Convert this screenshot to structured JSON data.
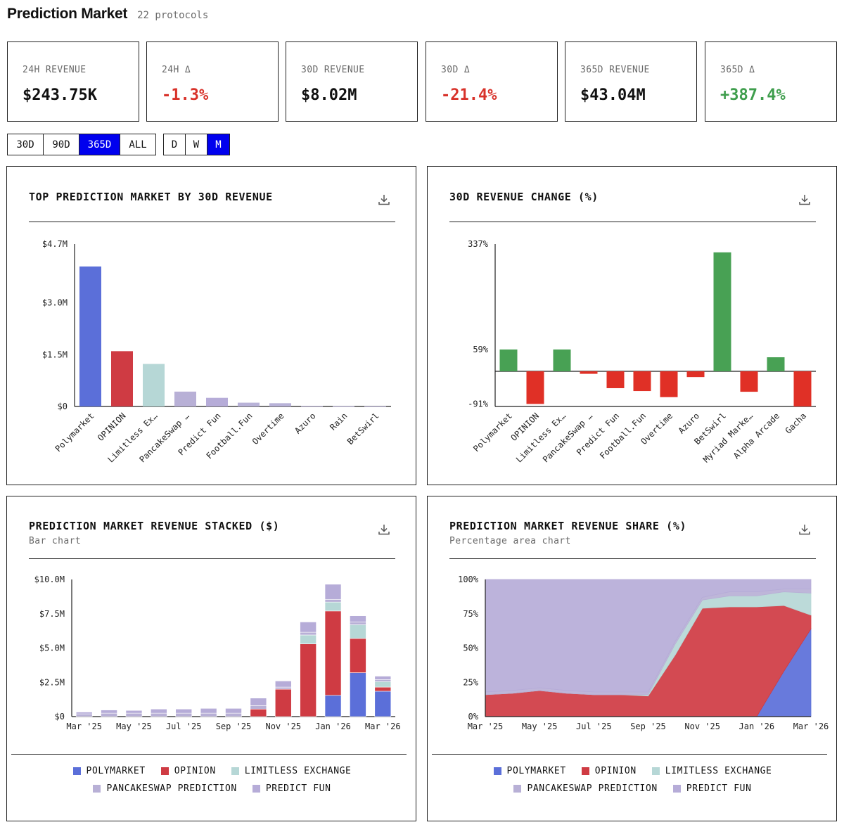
{
  "header": {
    "title": "Prediction Market",
    "subtitle": "22 protocols"
  },
  "stats": [
    {
      "label": "24H REVENUE",
      "value": "$243.75K",
      "color": "#111111"
    },
    {
      "label": "24H Δ",
      "value": "-1.3%",
      "color": "#d8322a"
    },
    {
      "label": "30D REVENUE",
      "value": "$8.02M",
      "color": "#111111"
    },
    {
      "label": "30D Δ",
      "value": "-21.4%",
      "color": "#d8322a"
    },
    {
      "label": "365D REVENUE",
      "value": "$43.04M",
      "color": "#111111"
    },
    {
      "label": "365D Δ",
      "value": "+387.4%",
      "color": "#3f9e4d"
    }
  ],
  "range_buttons": {
    "items": [
      "30D",
      "90D",
      "365D",
      "ALL"
    ],
    "active": "365D"
  },
  "interval_buttons": {
    "items": [
      "D",
      "W",
      "M"
    ],
    "active": "M"
  },
  "colors": {
    "polymarket": "#5b6fd9",
    "opinion": "#cf3b43",
    "limitless": "#b6d7d6",
    "pancakeswap": "#b8b0d6",
    "predictfun": "#b6acd8",
    "other": "#b8b2d8",
    "positive": "#48a154",
    "negative": "#e03026"
  },
  "panels": {
    "top": {
      "title": "TOP PREDICTION MARKET BY 30D REVENUE"
    },
    "change": {
      "title": "30D REVENUE CHANGE (%)"
    },
    "stacked": {
      "title": "PREDICTION MARKET REVENUE STACKED ($)",
      "subtitle": "Bar chart"
    },
    "share": {
      "title": "PREDICTION MARKET REVENUE SHARE (%)",
      "subtitle": "Percentage area chart"
    }
  },
  "legend": [
    {
      "label": "POLYMARKET",
      "color": "#5b6fd9"
    },
    {
      "label": "OPINION",
      "color": "#cf3b43"
    },
    {
      "label": "LIMITLESS EXCHANGE",
      "color": "#b6d7d6"
    },
    {
      "label": "PANCAKESWAP PREDICTION",
      "color": "#b8b0d6"
    },
    {
      "label": "PREDICT FUN",
      "color": "#b6acd8"
    }
  ],
  "chart_data": [
    {
      "id": "top",
      "type": "bar",
      "title": "TOP PREDICTION MARKET BY 30D REVENUE",
      "categories": [
        "Polymarket",
        "OPINION",
        "Limitless Ex…",
        "PancakeSwap …",
        "Predict Fun",
        "Football.Fun",
        "Overtime",
        "Azuro",
        "Rain",
        "BetSwirl"
      ],
      "values": [
        4050000,
        1600000,
        1230000,
        430000,
        250000,
        110000,
        95000,
        15000,
        8000,
        5000
      ],
      "bar_colors": [
        "#5b6fd9",
        "#cf3b43",
        "#b6d7d6",
        "#b8b0d6",
        "#b6acd8",
        "#b8b2d8",
        "#b8b2d8",
        "#b8b2d8",
        "#b8b2d8",
        "#b8b2d8"
      ],
      "yticks": [
        0,
        1500000,
        3000000,
        4700000
      ],
      "ytick_labels": [
        "$0",
        "$1.5M",
        "$3.0M",
        "$4.7M"
      ],
      "ylim": [
        0,
        4700000
      ]
    },
    {
      "id": "change",
      "type": "bar",
      "title": "30D REVENUE CHANGE (%)",
      "categories": [
        "Polymarket",
        "OPINION",
        "Limitless Ex…",
        "PancakeSwap …",
        "Predict Fun",
        "Football.Fun",
        "Overtime",
        "Azuro",
        "BetSwirl",
        "Myriad Marke…",
        "Alpha Arcade",
        "Gacha"
      ],
      "values": [
        59,
        -91,
        59,
        -7,
        -47,
        -55,
        -72,
        -16,
        315,
        -57,
        38,
        -98
      ],
      "yticks": [
        -91,
        59,
        337
      ],
      "ytick_labels": [
        "-91%",
        "59%",
        "337%"
      ],
      "ylim": [
        -98,
        337
      ]
    },
    {
      "id": "stacked",
      "type": "bar",
      "stacked": true,
      "title": "PREDICTION MARKET REVENUE STACKED ($)",
      "categories": [
        "Mar '25",
        "Apr '25",
        "May '25",
        "Jun '25",
        "Jul '25",
        "Aug '25",
        "Sep '25",
        "Oct '25",
        "Nov '25",
        "Dec '25",
        "Jan '26",
        "Feb '26",
        "Mar '26"
      ],
      "xtick_labels": [
        "Mar '25",
        "May '25",
        "Jul '25",
        "Sep '25",
        "Nov '25",
        "Jan '26",
        "Mar '26"
      ],
      "series": [
        {
          "name": "POLYMARKET",
          "values": [
            0,
            0,
            0,
            0,
            0,
            0,
            0,
            0,
            0,
            0,
            1550000,
            3200000,
            1850000
          ]
        },
        {
          "name": "OPINION",
          "values": [
            0,
            0,
            0,
            0,
            0,
            0,
            0,
            550000,
            2000000,
            5300000,
            6150000,
            2500000,
            300000
          ]
        },
        {
          "name": "LIMITLESS EXCHANGE",
          "values": [
            0,
            0,
            0,
            0,
            0,
            0,
            0,
            0,
            0,
            650000,
            650000,
            1000000,
            400000
          ]
        },
        {
          "name": "PANCAKESWAP PREDICTION",
          "values": [
            200000,
            250000,
            250000,
            250000,
            250000,
            250000,
            250000,
            250000,
            150000,
            200000,
            200000,
            200000,
            150000
          ]
        },
        {
          "name": "PREDICT FUN",
          "values": [
            130000,
            230000,
            200000,
            300000,
            300000,
            350000,
            350000,
            550000,
            450000,
            750000,
            1100000,
            450000,
            250000
          ]
        }
      ],
      "yticks": [
        0,
        2500000,
        5000000,
        7500000,
        10000000
      ],
      "ytick_labels": [
        "$0",
        "$2.5M",
        "$5.0M",
        "$7.5M",
        "$10.0M"
      ],
      "ylim": [
        0,
        10000000
      ]
    },
    {
      "id": "share",
      "type": "area",
      "stacked": true,
      "normalized": true,
      "title": "PREDICTION MARKET REVENUE SHARE (%)",
      "x": [
        "Mar '25",
        "Apr '25",
        "May '25",
        "Jun '25",
        "Jul '25",
        "Aug '25",
        "Sep '25",
        "Oct '25",
        "Nov '25",
        "Dec '25",
        "Jan '26",
        "Feb '26",
        "Mar '26"
      ],
      "xtick_labels": [
        "Mar '25",
        "May '25",
        "Jul '25",
        "Sep '25",
        "Nov '25",
        "Jan '26",
        "Mar '26"
      ],
      "series": [
        {
          "name": "POLYMARKET",
          "values": [
            0,
            0,
            0,
            0,
            0,
            0,
            0,
            0,
            0,
            0,
            0,
            33,
            64
          ]
        },
        {
          "name": "OPINION",
          "values": [
            16,
            17,
            19,
            17,
            16,
            16,
            15,
            45,
            79,
            80,
            80,
            48,
            10
          ]
        },
        {
          "name": "LIMITLESS EXCHANGE",
          "values": [
            0,
            0,
            0,
            0,
            0,
            0,
            1,
            8,
            6,
            8,
            8,
            10,
            16
          ]
        },
        {
          "name": "PANCAKESWAP PREDICTION",
          "values": [
            2,
            2,
            2,
            2,
            2,
            2,
            2,
            2,
            2,
            3,
            3,
            2,
            3
          ]
        },
        {
          "name": "PREDICT FUN",
          "values": [
            82,
            81,
            79,
            81,
            82,
            82,
            82,
            45,
            13,
            9,
            9,
            7,
            7
          ]
        }
      ],
      "yticks": [
        0,
        25,
        50,
        75,
        100
      ],
      "ytick_labels": [
        "0%",
        "25%",
        "50%",
        "75%",
        "100%"
      ],
      "ylim": [
        0,
        100
      ]
    }
  ]
}
